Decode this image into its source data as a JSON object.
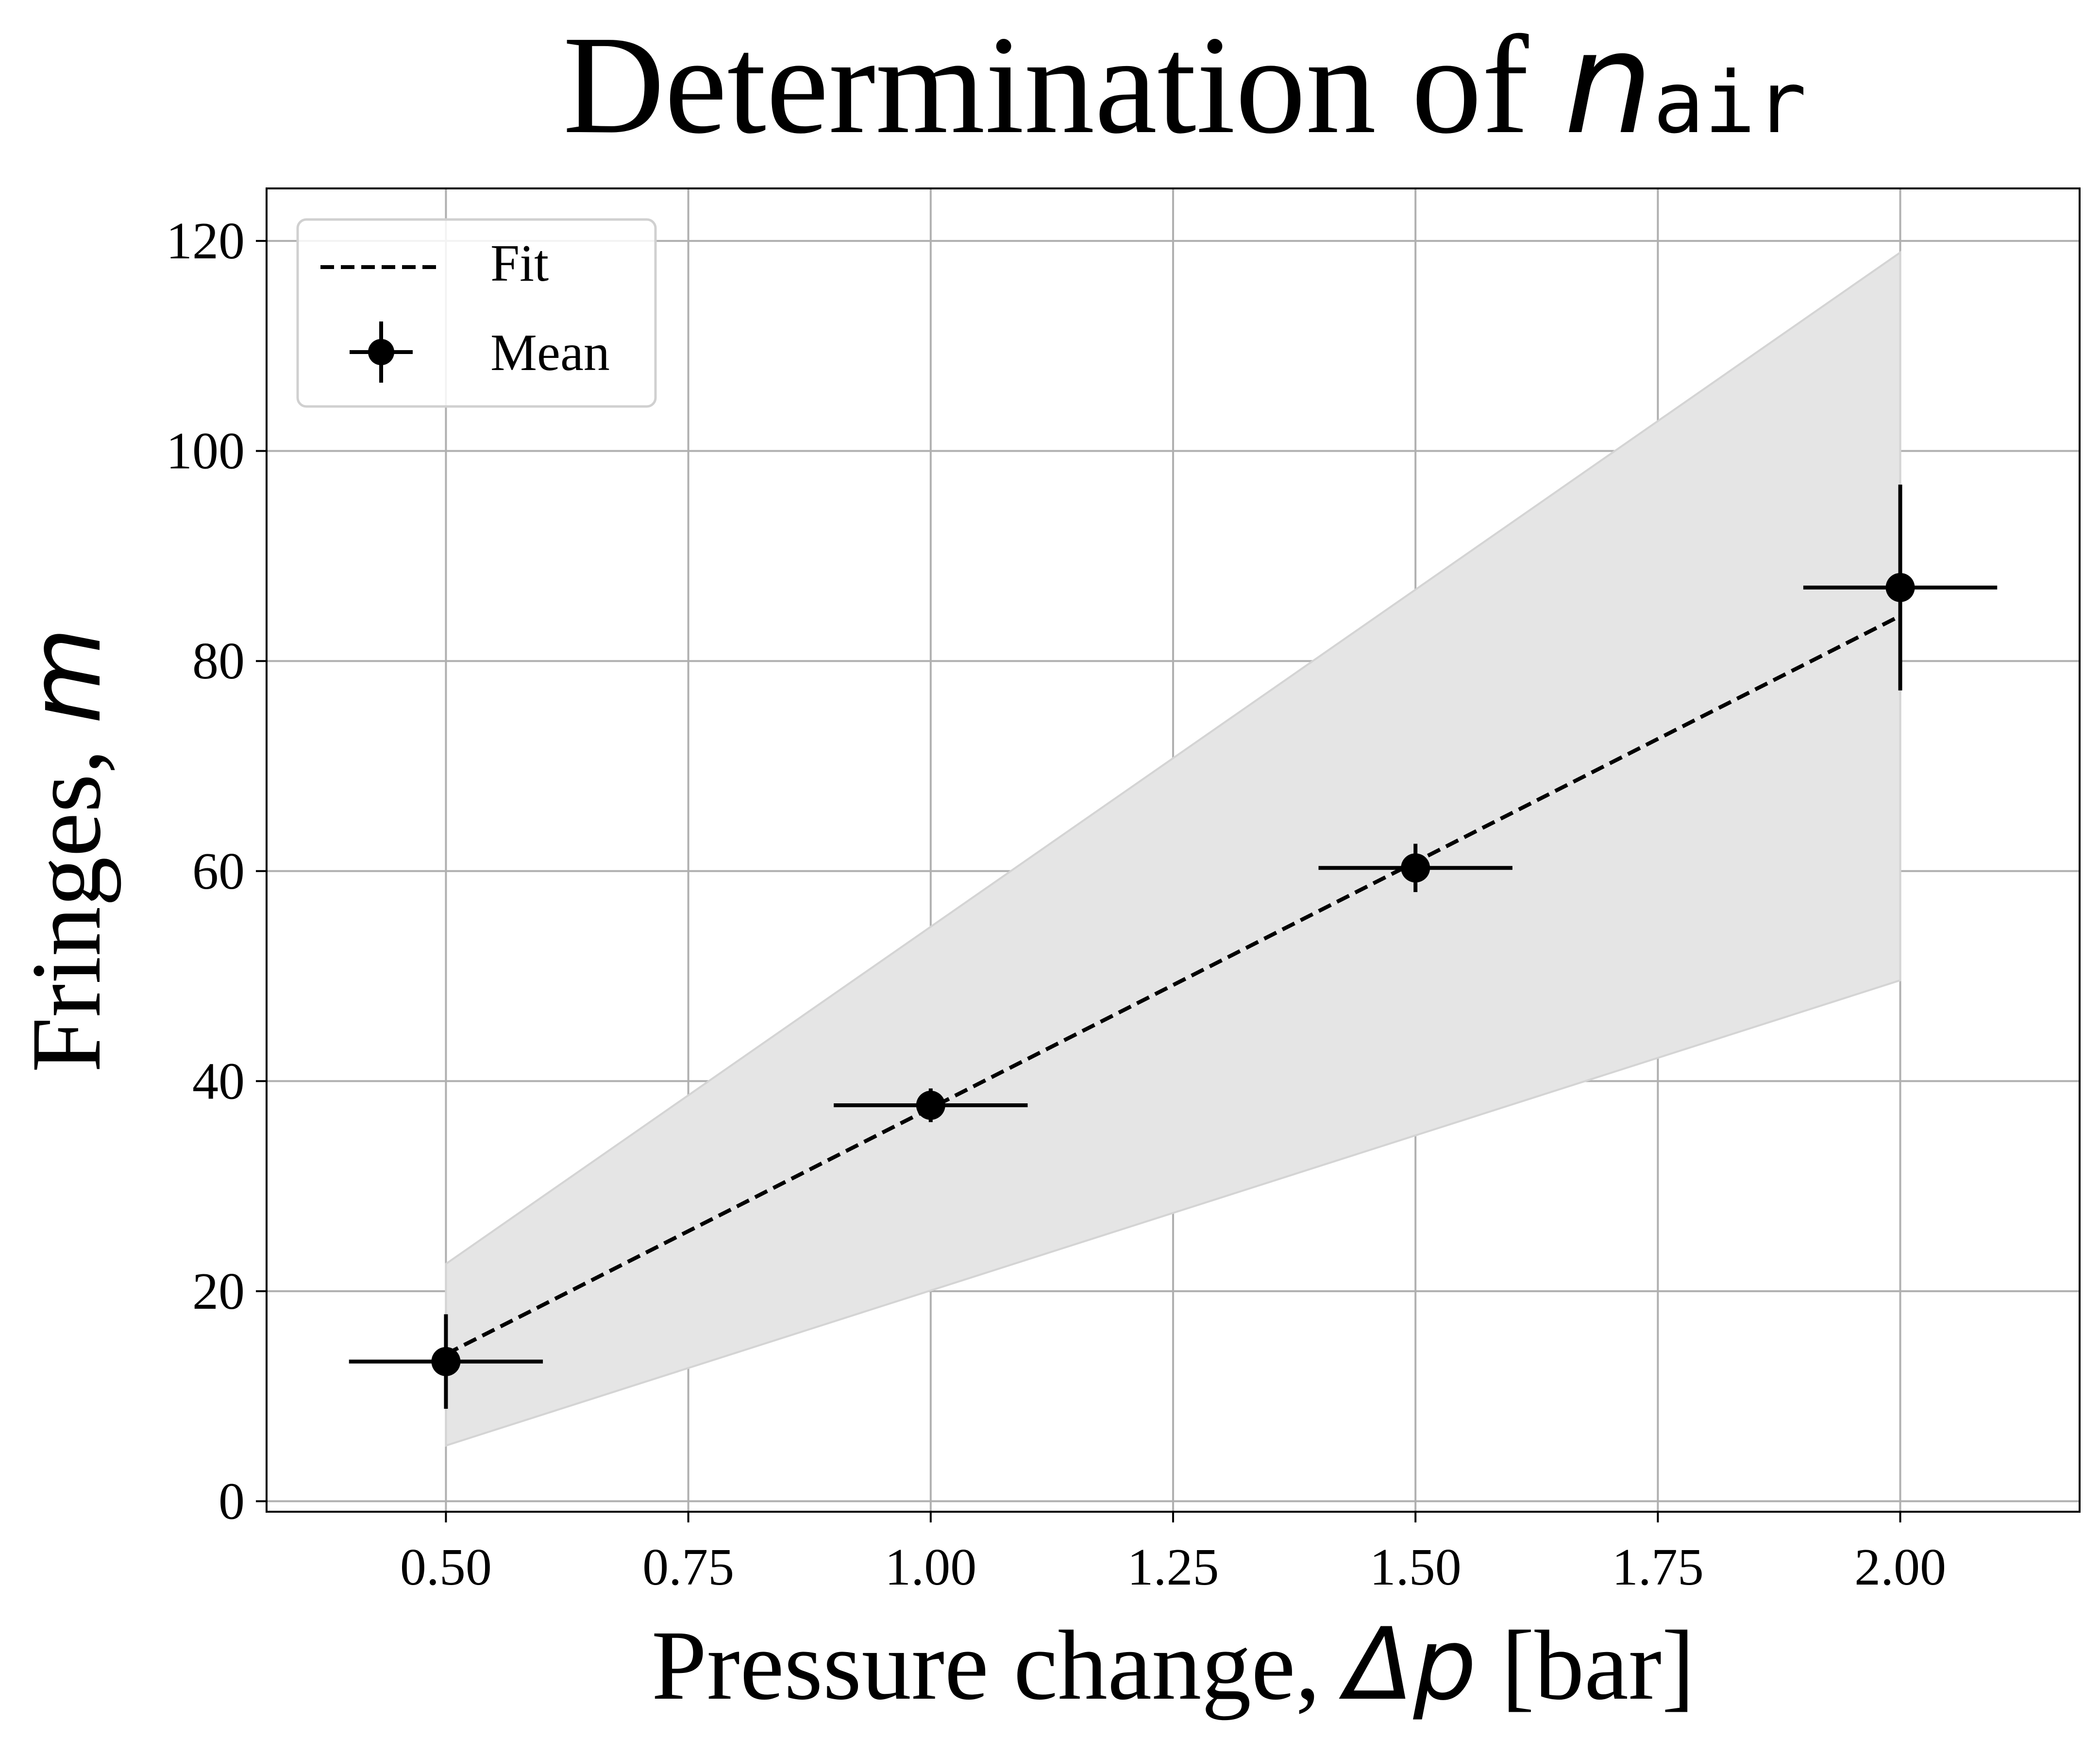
{
  "chart_data": {
    "type": "scatter",
    "title": {
      "text": "Determination of ",
      "symbol": "n",
      "subscript": "air"
    },
    "xlabel": {
      "text": "Pressure change, ",
      "symbol": "Δp",
      "unit": " [bar]"
    },
    "ylabel": {
      "text": "Fringes, ",
      "symbol": "m"
    },
    "xlim": [
      0.315,
      2.185
    ],
    "ylim": [
      -1,
      125
    ],
    "xticks": [
      0.5,
      0.75,
      1.0,
      1.25,
      1.5,
      1.75,
      2.0
    ],
    "xtick_labels": [
      "0.50",
      "0.75",
      "1.00",
      "1.25",
      "1.50",
      "1.75",
      "2.00"
    ],
    "yticks": [
      0,
      20,
      40,
      60,
      80,
      100,
      120
    ],
    "ytick_labels": [
      "0",
      "20",
      "40",
      "60",
      "80",
      "100",
      "120"
    ],
    "grid": true,
    "legend": {
      "placement": "top-left",
      "entries": [
        "Fit",
        "Mean"
      ]
    },
    "series": [
      {
        "name": "Mean",
        "kind": "errorbar",
        "x": [
          0.5,
          1.0,
          1.5,
          2.0
        ],
        "y": [
          13.3,
          37.7,
          60.3,
          87.0
        ],
        "xerr": [
          0.1,
          0.1,
          0.1,
          0.1
        ],
        "yerr": [
          4.5,
          1.6,
          2.3,
          9.8
        ],
        "color": "#000000"
      },
      {
        "name": "Fit",
        "kind": "line",
        "style": "dashed",
        "x": [
          0.5,
          2.0
        ],
        "y": [
          14.0,
          84.3
        ],
        "color": "#000000"
      },
      {
        "kind": "band",
        "x": [
          0.5,
          2.0
        ],
        "y_lower": [
          5.3,
          49.6
        ],
        "y_upper": [
          22.6,
          118.9
        ],
        "color": "#e5e5e5"
      }
    ]
  }
}
